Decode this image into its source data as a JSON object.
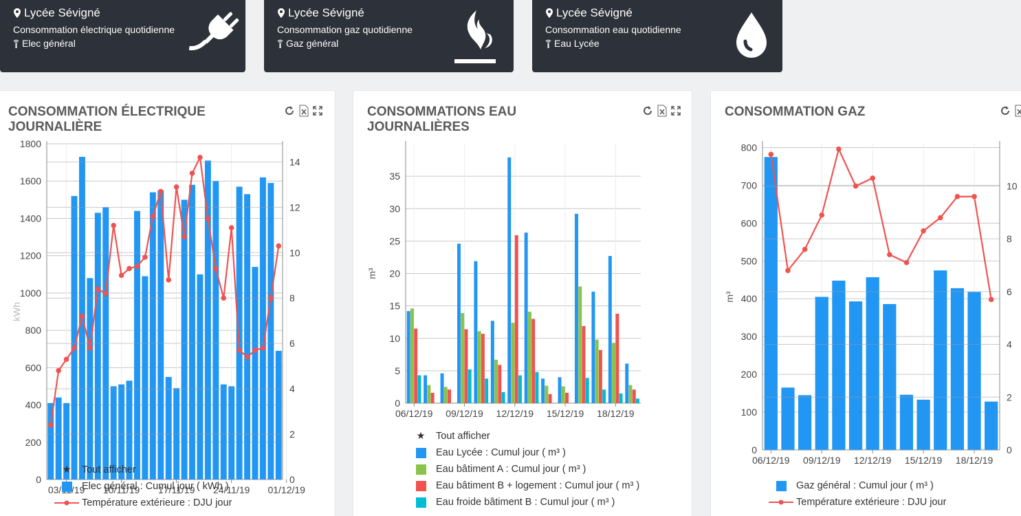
{
  "colors": {
    "tile_bg": "#2d3139",
    "blue": "#2196f3",
    "green": "#8bc34a",
    "red": "#ef5350",
    "cyan": "#00bcd4",
    "line": "#ef5350"
  },
  "tiles": [
    {
      "site": "Lycée Sévigné",
      "desc": "Consommation électrique quotidienne",
      "meter": "Elec général",
      "icon": "plug-icon"
    },
    {
      "site": "Lycée Sévigné",
      "desc": "Consommation gaz quotidienne",
      "meter": "Gaz général",
      "icon": "flame-icon"
    },
    {
      "site": "Lycée Sévigné",
      "desc": "Consommation eau quotidienne",
      "meter": "Eau Lycée",
      "icon": "water-drop-icon"
    }
  ],
  "panels": {
    "elec": {
      "title_line1": "CONSOMMATION ÉLECTRIQUE",
      "title_line2": "JOURNALIÈRE",
      "legend_all": "Tout afficher",
      "legend_bar": "Elec général : Cumul jour ( kWh )",
      "legend_line": "Température extérieure : DJU jour"
    },
    "eau": {
      "title_line1": "CONSOMMATIONS EAU",
      "title_line2": "JOURNALIÈRES",
      "legend_all": "Tout afficher",
      "legend_s1": "Eau Lycée : Cumul jour ( m³ )",
      "legend_s2": "Eau bâtiment A : Cumul jour ( m³ )",
      "legend_s3": "Eau bâtiment B + logement : Cumul jour ( m³ )",
      "legend_s4": "Eau froide bâtiment B : Cumul jour ( m³ )"
    },
    "gaz": {
      "title_line1": "CONSOMMATION GAZ",
      "legend_bar": "Gaz général : Cumul jour ( m³ )",
      "legend_line": "Température extérieure : DJU jour"
    }
  },
  "chart_data": [
    {
      "type": "bar",
      "ylabel": "kWh",
      "ylim": [
        0,
        1800
      ],
      "y2lim": [
        0,
        14.8
      ],
      "yticks": [
        0,
        200,
        400,
        600,
        800,
        1000,
        1200,
        1400,
        1600,
        1800
      ],
      "y2ticks": [
        0,
        2,
        4,
        6,
        8,
        10,
        12,
        14
      ],
      "xticks": [
        "03/11/19",
        "10/11/19",
        "17/11/19",
        "24/11/19",
        "01/12/19"
      ],
      "tick_index": [
        2,
        9,
        16,
        23,
        30
      ],
      "series": [
        {
          "name": "Elec général : Cumul jour ( kWh )",
          "kind": "bar",
          "values": [
            410,
            440,
            410,
            1520,
            1730,
            1080,
            1430,
            1460,
            500,
            510,
            530,
            1440,
            1090,
            1540,
            1550,
            550,
            490,
            1500,
            1580,
            1100,
            1710,
            1600,
            510,
            500,
            1570,
            1530,
            1140,
            1620,
            1590,
            690
          ]
        },
        {
          "name": "Température extérieure : DJU jour",
          "kind": "line",
          "axis": "right",
          "values": [
            2.4,
            4.8,
            5.3,
            5.8,
            7.2,
            5.8,
            8.4,
            8.2,
            11.2,
            9.0,
            9.3,
            9.4,
            9.8,
            11.6,
            12.7,
            8.8,
            12.9,
            10.7,
            13.5,
            14.2,
            11.5,
            9.3,
            8.0,
            11.1,
            5.7,
            5.4,
            5.7,
            5.8,
            8.0,
            10.3
          ]
        }
      ]
    },
    {
      "type": "bar",
      "ylabel": "m³",
      "ylim": [
        0,
        40
      ],
      "yticks": [
        0,
        5,
        10,
        15,
        20,
        25,
        30,
        35
      ],
      "xticks": [
        "06/12/19",
        "09/12/19",
        "12/12/19",
        "15/12/19",
        "18/12/19"
      ],
      "tick_index": [
        0,
        3,
        6,
        9,
        12
      ],
      "series": [
        {
          "name": "Eau Lycée : Cumul jour ( m³ )",
          "values": [
            14.2,
            4.3,
            4.6,
            24.6,
            21.9,
            12.7,
            37.9,
            26.3,
            3.8,
            4.0,
            29.2,
            17.2,
            22.7,
            6.1
          ]
        },
        {
          "name": "Eau bâtiment A : Cumul jour ( m³ )",
          "values": [
            14.6,
            2.8,
            2.5,
            13.9,
            11.1,
            6.7,
            12.4,
            14.1,
            2.7,
            2.6,
            18.0,
            9.8,
            9.3,
            2.8
          ]
        },
        {
          "name": "Eau bâtiment B + logement : Cumul jour ( m³ )",
          "values": [
            11.5,
            1.6,
            2.1,
            11.4,
            10.7,
            5.9,
            25.9,
            13.0,
            1.4,
            1.6,
            11.9,
            8.2,
            13.8,
            2.1
          ]
        },
        {
          "name": "Eau froide bâtiment B : Cumul jour ( m³ )",
          "values": [
            4.3,
            0,
            0,
            5.2,
            3.8,
            1.7,
            4.3,
            4.8,
            0,
            0,
            3.9,
            2.1,
            1.5,
            0.7
          ]
        }
      ]
    },
    {
      "type": "bar",
      "ylabel": "m³",
      "ylim": [
        0,
        810
      ],
      "y2lim": [
        0,
        11.6
      ],
      "yticks": [
        0,
        100,
        200,
        300,
        400,
        500,
        600,
        700,
        800
      ],
      "y2ticks": [
        0,
        2,
        4,
        6,
        8,
        10
      ],
      "xticks": [
        "06/12/19",
        "09/12/19",
        "12/12/19",
        "15/12/19",
        "18/12/19"
      ],
      "tick_index": [
        0,
        3,
        6,
        9,
        12
      ],
      "series": [
        {
          "name": "Gaz général : Cumul jour ( m³ )",
          "kind": "bar",
          "values": [
            775,
            165,
            145,
            405,
            448,
            393,
            457,
            386,
            146,
            133,
            475,
            428,
            418,
            128
          ]
        },
        {
          "name": "Température extérieure : DJU jour",
          "kind": "line",
          "axis": "right",
          "values": [
            11.2,
            6.8,
            7.6,
            8.9,
            11.4,
            10.0,
            10.3,
            7.4,
            7.1,
            8.3,
            8.8,
            9.6,
            9.6,
            5.7
          ]
        }
      ]
    }
  ]
}
